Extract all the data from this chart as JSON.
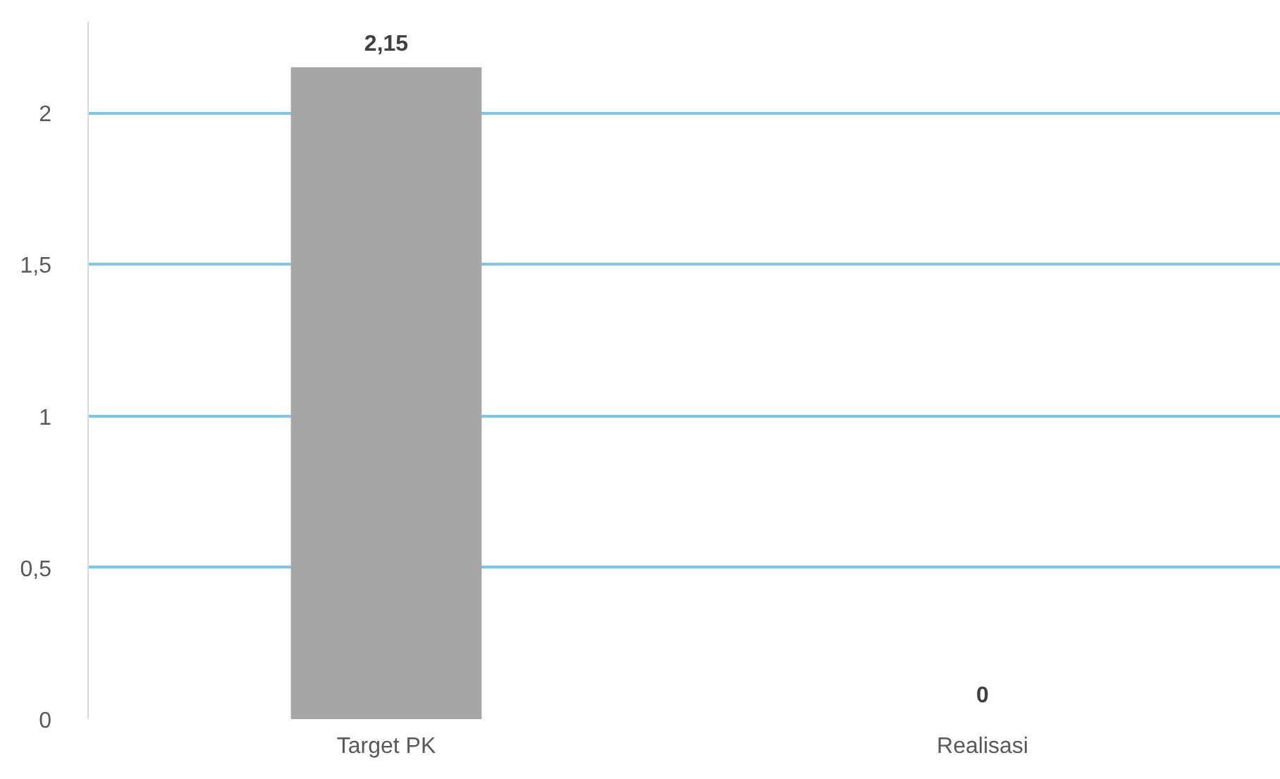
{
  "chart_data": {
    "type": "bar",
    "categories": [
      "Target PK",
      "Realisasi"
    ],
    "values": [
      2.15,
      0
    ],
    "value_labels": [
      "2,15",
      "0"
    ],
    "color": "#a6a6a6",
    "ylim": [
      0,
      2.3
    ],
    "yticks": [
      0,
      {
        "value": 0.5,
        "label": "0,5"
      },
      1,
      {
        "value": 1.5,
        "label": "1,5"
      },
      2
    ],
    "grid": "y"
  }
}
